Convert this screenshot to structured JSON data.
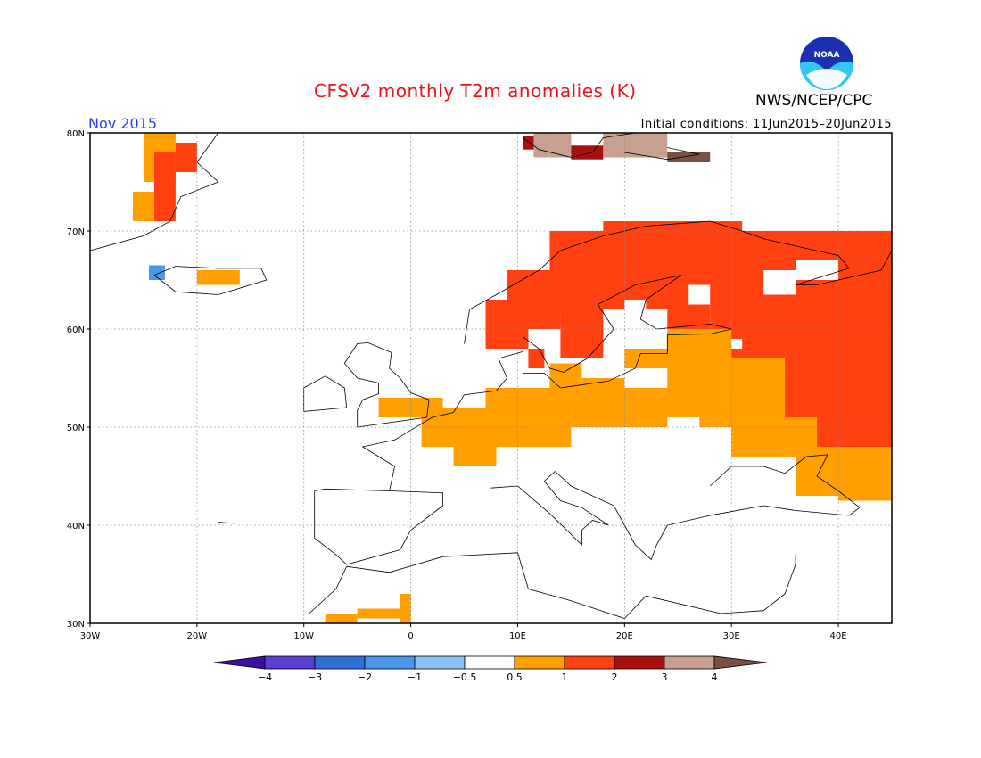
{
  "header": {
    "title": "CFSv2 monthly T2m anomalies (K)",
    "period": "Nov 2015",
    "initial_conditions": "Initial conditions: 11Jun2015–20Jun2015",
    "agency": "NWS/NCEP/CPC",
    "logo_text": "NOAA"
  },
  "axes": {
    "lon_labels": [
      "30W",
      "20W",
      "10W",
      "0",
      "10E",
      "20E",
      "30E",
      "40E"
    ],
    "lat_labels": [
      "80N",
      "70N",
      "60N",
      "50N",
      "40N",
      "30N"
    ]
  },
  "colorbar": {
    "labels": [
      "−4",
      "−3",
      "−2",
      "−1",
      "−0.5",
      "0.5",
      "1",
      "2",
      "3",
      "4"
    ],
    "colors": [
      "#3d0fa0",
      "#5a3fd0",
      "#2f6fd6",
      "#4a97ec",
      "#8cc0f2",
      "#ffffff",
      "#ffa000",
      "#ff4010",
      "#a80f0f",
      "#c8a090",
      "#7a5040"
    ]
  },
  "map_data": {
    "extent": {
      "lon": [
        -30,
        45
      ],
      "lat": [
        30,
        80
      ]
    },
    "cell_colors": {
      "o": "#ffa000",
      "r": "#ff4010",
      "d": "#a80f0f",
      "b": "#c8a090",
      "k": "#7a5040",
      "l": "#4a97ec"
    }
  }
}
